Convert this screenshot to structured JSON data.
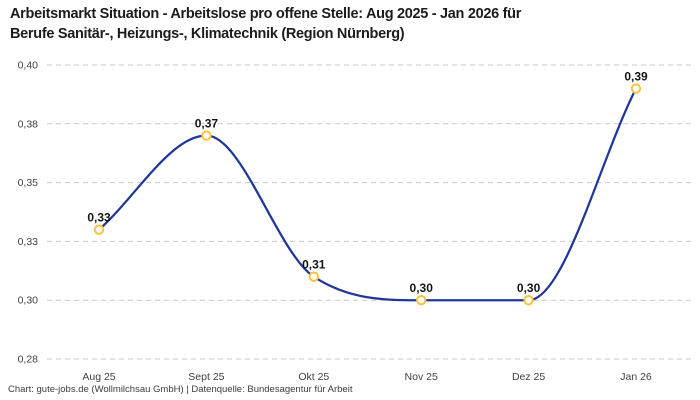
{
  "header": {
    "title_line1": "Arbeitsmarkt Situation - Arbeitslose pro offene Stelle: Aug 2025 - Jan 2026 für",
    "title_line2": "Berufe Sanitär-, Heizungs-, Klimatechnik (Region Nürnberg)"
  },
  "footer": {
    "credit": "Chart: gute-jobs.de (Wollmilchsau GmbH) | Datenquelle: Bundesagentur für Arbeit"
  },
  "chart_data": {
    "type": "line",
    "title": "Arbeitsmarkt Situation - Arbeitslose pro offene Stelle: Aug 2025 - Jan 2026 für Berufe Sanitär-, Heizungs-, Klimatechnik (Region Nürnberg)",
    "categories": [
      "Aug 25",
      "Sept 25",
      "Okt 25",
      "Nov 25",
      "Dez 25",
      "Jan 26"
    ],
    "values": [
      0.33,
      0.37,
      0.31,
      0.3,
      0.3,
      0.39
    ],
    "value_labels": [
      "0,33",
      "0,37",
      "0,31",
      "0,30",
      "0,30",
      "0,39"
    ],
    "y_ticks": [
      0.4,
      0.375,
      0.35,
      0.325,
      0.3,
      0.275
    ],
    "y_tick_labels": [
      "0,40",
      "0,38",
      "0,35",
      "0,33",
      "0,30",
      "0,28"
    ],
    "ylim": [
      0.275,
      0.4
    ],
    "grid": "horizontal-dashed",
    "legend": "none",
    "line_color": "#1e3799",
    "marker_stroke_color": "#fdc13c",
    "marker_fill_color": "#ffffff",
    "grid_color": "#c9c9c9",
    "curve": "monotone"
  }
}
